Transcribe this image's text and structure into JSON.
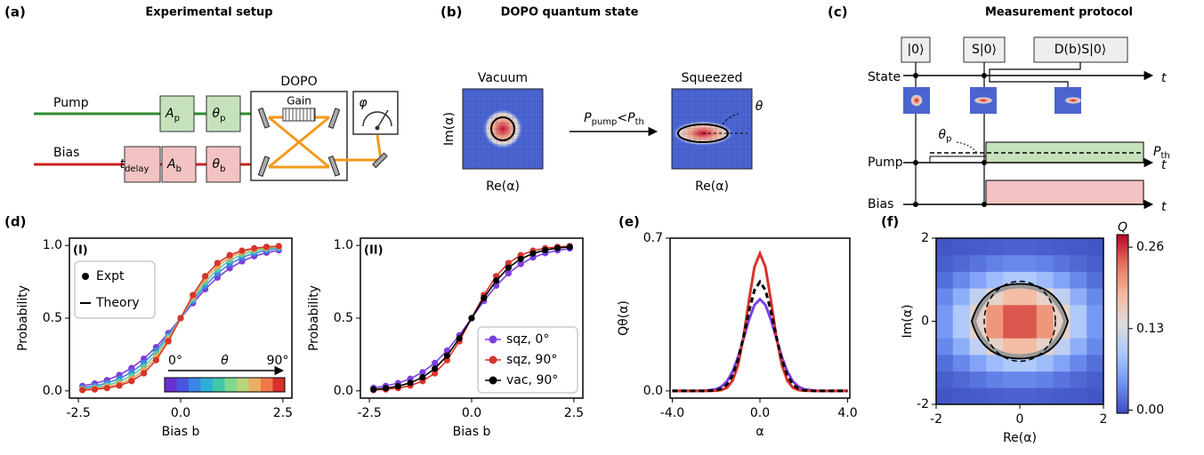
{
  "panel_a": {
    "label": "(a)",
    "title": "Experimental setup",
    "pump": "Pump",
    "bias": "Bias",
    "dopo": "DOPO",
    "gain": "Gain",
    "phi": "φ",
    "boxes": [
      {
        "main": "A",
        "sub": "p"
      },
      {
        "main": "θ",
        "sub": "p"
      },
      {
        "main": "t",
        "sub": "delay"
      },
      {
        "main": "A",
        "sub": "b"
      },
      {
        "main": "θ",
        "sub": "b"
      }
    ]
  },
  "panel_b": {
    "label": "(b)",
    "title": "DOPO quantum state",
    "vacuum": "Vacuum",
    "squeezed": "Squeezed",
    "y_label": "Im(α)",
    "x_labels": [
      "Re(α)",
      "Re(α)"
    ],
    "condition": {
      "left": "P",
      "left_sub": "pump",
      "op": "<",
      "right": "P",
      "right_sub": "th"
    },
    "angle": "θ"
  },
  "panel_c": {
    "label": "(c)",
    "title": "Measurement protocol",
    "states": [
      "|0⟩",
      "S|0⟩",
      "D(b)S|0⟩"
    ],
    "rows": [
      "State",
      "Pump",
      "Bias"
    ],
    "t": [
      "t",
      "t",
      "t"
    ],
    "theta": {
      "main": "θ",
      "sub": "p"
    },
    "threshold": {
      "main": "P",
      "sub": "th"
    }
  },
  "chart_data": [
    {
      "type": "line",
      "markers": true,
      "panel_label": "(d)",
      "sublabel": "(I)",
      "xlabel": "Bias b",
      "ylabel": "Probability",
      "x": [
        -2.4,
        -2.1,
        -1.8,
        -1.5,
        -1.2,
        -0.9,
        -0.6,
        -0.3,
        0,
        0.3,
        0.6,
        0.9,
        1.2,
        1.5,
        1.8,
        2.1,
        2.4
      ],
      "series": [
        {
          "color": "#7a3fd8",
          "values": [
            0.034,
            0.05,
            0.074,
            0.109,
            0.157,
            0.221,
            0.301,
            0.397,
            0.5,
            0.603,
            0.699,
            0.779,
            0.843,
            0.891,
            0.926,
            0.95,
            0.966
          ]
        },
        {
          "color": "#3d86e0",
          "values": [
            0.021,
            0.034,
            0.053,
            0.083,
            0.128,
            0.192,
            0.277,
            0.382,
            0.5,
            0.618,
            0.723,
            0.808,
            0.872,
            0.917,
            0.947,
            0.966,
            0.979
          ]
        },
        {
          "color": "#5ac8a8",
          "values": [
            0.013,
            0.022,
            0.038,
            0.063,
            0.103,
            0.165,
            0.254,
            0.368,
            0.5,
            0.632,
            0.746,
            0.835,
            0.897,
            0.937,
            0.962,
            0.978,
            0.987
          ]
        },
        {
          "color": "#e8a85a",
          "values": [
            0.008,
            0.015,
            0.027,
            0.047,
            0.083,
            0.142,
            0.231,
            0.354,
            0.5,
            0.646,
            0.769,
            0.858,
            0.917,
            0.953,
            0.973,
            0.985,
            0.992
          ]
        },
        {
          "color": "#d7342a",
          "values": [
            0.005,
            0.01,
            0.019,
            0.036,
            0.067,
            0.121,
            0.211,
            0.341,
            0.5,
            0.659,
            0.789,
            0.879,
            0.933,
            0.964,
            0.981,
            0.99,
            0.995
          ]
        }
      ],
      "xlim": [
        -2.72,
        2.72
      ],
      "ylim": [
        -0.05,
        1.05
      ],
      "xticks": [
        -2.5,
        {
          "value": 0,
          "label": "0.0"
        },
        2.5
      ],
      "yticks": [
        {
          "value": 0,
          "label": "0.0"
        },
        {
          "value": 0.5,
          "label": "0.5"
        },
        {
          "value": 1,
          "label": "1.0"
        }
      ],
      "legend": [
        {
          "name": "Expt",
          "marker": "dot"
        },
        {
          "name": "Theory",
          "marker": "line"
        }
      ],
      "legend_position": "upper left",
      "colorbar": {
        "colors": [
          "#6a2fd0",
          "#4a55e0",
          "#3a85e6",
          "#2db0d5",
          "#40c8a8",
          "#80d890",
          "#b8d47a",
          "#e8b060",
          "#f07848",
          "#d8302a"
        ],
        "min_label": "0°",
        "label": "θ",
        "max_label": "90°"
      }
    },
    {
      "type": "line",
      "markers": true,
      "sublabel": "(II)",
      "xlabel": "Bias b",
      "ylabel": "Probability",
      "x": [
        -2.4,
        -2.1,
        -1.8,
        -1.5,
        -1.2,
        -0.9,
        -0.6,
        -0.3,
        0,
        0.3,
        0.6,
        0.9,
        1.2,
        1.5,
        1.8,
        2.1,
        2.4
      ],
      "series": [
        {
          "name": "sqz, 0°",
          "color": "#7b3fe0",
          "values": [
            0.021,
            0.034,
            0.053,
            0.083,
            0.128,
            0.192,
            0.277,
            0.382,
            0.5,
            0.618,
            0.723,
            0.808,
            0.872,
            0.917,
            0.947,
            0.966,
            0.979
          ]
        },
        {
          "name": "sqz, 90°",
          "color": "#d7342a",
          "values": [
            0.005,
            0.01,
            0.019,
            0.036,
            0.067,
            0.121,
            0.211,
            0.341,
            0.5,
            0.659,
            0.789,
            0.879,
            0.933,
            0.964,
            0.981,
            0.99,
            0.995
          ]
        },
        {
          "name": "vac, 90°",
          "color": "#000000",
          "values": [
            0.01,
            0.018,
            0.032,
            0.055,
            0.093,
            0.153,
            0.242,
            0.361,
            0.5,
            0.639,
            0.758,
            0.847,
            0.907,
            0.945,
            0.968,
            0.982,
            0.99
          ]
        }
      ],
      "xlim": [
        -2.72,
        2.72
      ],
      "ylim": [
        -0.05,
        1.05
      ],
      "xticks": [
        -2.5,
        {
          "value": 0,
          "label": "0.0"
        },
        2.5
      ],
      "yticks": [
        {
          "value": 0,
          "label": "0.0"
        },
        {
          "value": 0.5,
          "label": "0.5"
        },
        {
          "value": 1,
          "label": "1.0"
        }
      ],
      "legend_position": "lower right"
    },
    {
      "type": "line",
      "panel_label": "(e)",
      "xlabel": "α",
      "ylabel": "Qθ(α)",
      "x": [
        -4,
        -3,
        -2.5,
        -2,
        -1.75,
        -1.5,
        -1.25,
        -1,
        -0.75,
        -0.5,
        -0.25,
        0,
        0.25,
        0.5,
        0.75,
        1,
        1.25,
        1.5,
        1.75,
        2,
        2.5,
        3,
        4
      ],
      "series": [
        {
          "color": "#7b3fe0",
          "values": [
            0,
            0,
            0.001,
            0.008,
            0.02,
            0.044,
            0.088,
            0.155,
            0.239,
            0.327,
            0.394,
            0.42,
            0.394,
            0.327,
            0.239,
            0.155,
            0.088,
            0.044,
            0.02,
            0.008,
            0.001,
            0,
            0
          ]
        },
        {
          "color": "#d7342a",
          "values": [
            0,
            0,
            0,
            0.001,
            0.004,
            0.015,
            0.047,
            0.119,
            0.247,
            0.415,
            0.568,
            0.63,
            0.568,
            0.415,
            0.247,
            0.119,
            0.047,
            0.015,
            0.004,
            0.001,
            0,
            0,
            0
          ]
        },
        {
          "color": "#000000",
          "dash": true,
          "values": [
            0,
            0,
            0,
            0.003,
            0.011,
            0.03,
            0.071,
            0.143,
            0.248,
            0.366,
            0.462,
            0.5,
            0.462,
            0.366,
            0.248,
            0.143,
            0.071,
            0.03,
            0.011,
            0.003,
            0,
            0,
            0
          ]
        }
      ],
      "xlim": [
        -4.1,
        4.1
      ],
      "ylim": [
        -0.033,
        0.7
      ],
      "xticks": [
        {
          "value": -4,
          "label": "-4.0"
        },
        {
          "value": 0,
          "label": "0.0"
        },
        {
          "value": 4,
          "label": "4.0"
        }
      ],
      "yticks": [
        {
          "value": 0,
          "label": "0.0"
        },
        0.7
      ]
    },
    {
      "type": "heatmap",
      "panel_label": "(f)",
      "xlabel": "Re(α)",
      "ylabel": "Im(α)",
      "x": [
        -1.8,
        -1.4,
        -1,
        -0.6,
        -0.2,
        0.2,
        0.6,
        1,
        1.4,
        1.8
      ],
      "y": [
        -1.8,
        -1.4,
        -1,
        -0.6,
        -0.2,
        0.2,
        0.6,
        1,
        1.4,
        1.8
      ],
      "z": [
        [
          0.002,
          0.004,
          0.006,
          0.008,
          0.01,
          0.01,
          0.008,
          0.006,
          0.004,
          0.002
        ],
        [
          0.007,
          0.014,
          0.022,
          0.031,
          0.036,
          0.036,
          0.031,
          0.022,
          0.014,
          0.007
        ],
        [
          0.019,
          0.036,
          0.058,
          0.08,
          0.094,
          0.094,
          0.08,
          0.058,
          0.036,
          0.019
        ],
        [
          0.036,
          0.068,
          0.11,
          0.152,
          0.178,
          0.178,
          0.152,
          0.11,
          0.068,
          0.036
        ],
        [
          0.049,
          0.094,
          0.152,
          0.209,
          0.245,
          0.245,
          0.209,
          0.152,
          0.094,
          0.049
        ],
        [
          0.049,
          0.094,
          0.152,
          0.209,
          0.245,
          0.245,
          0.209,
          0.152,
          0.094,
          0.049
        ],
        [
          0.036,
          0.068,
          0.11,
          0.152,
          0.178,
          0.178,
          0.152,
          0.11,
          0.068,
          0.036
        ],
        [
          0.019,
          0.036,
          0.058,
          0.08,
          0.094,
          0.094,
          0.08,
          0.058,
          0.036,
          0.019
        ],
        [
          0.007,
          0.014,
          0.022,
          0.031,
          0.036,
          0.036,
          0.031,
          0.022,
          0.014,
          0.007
        ],
        [
          0.002,
          0.004,
          0.006,
          0.008,
          0.01,
          0.01,
          0.008,
          0.006,
          0.004,
          0.002
        ]
      ],
      "xlim": [
        -2,
        2
      ],
      "ylim": [
        -2,
        2
      ],
      "xticks": [
        -2,
        0,
        2
      ],
      "yticks": [
        -2,
        0,
        2
      ],
      "colorbar": {
        "label": "Q",
        "clim": [
          -0.005,
          0.28
        ],
        "ticks": [
          {
            "value": 0,
            "label": "0.00"
          },
          {
            "value": 0.13,
            "label": "0.13"
          },
          {
            "value": 0.26,
            "label": "0.26"
          }
        ]
      }
    }
  ]
}
